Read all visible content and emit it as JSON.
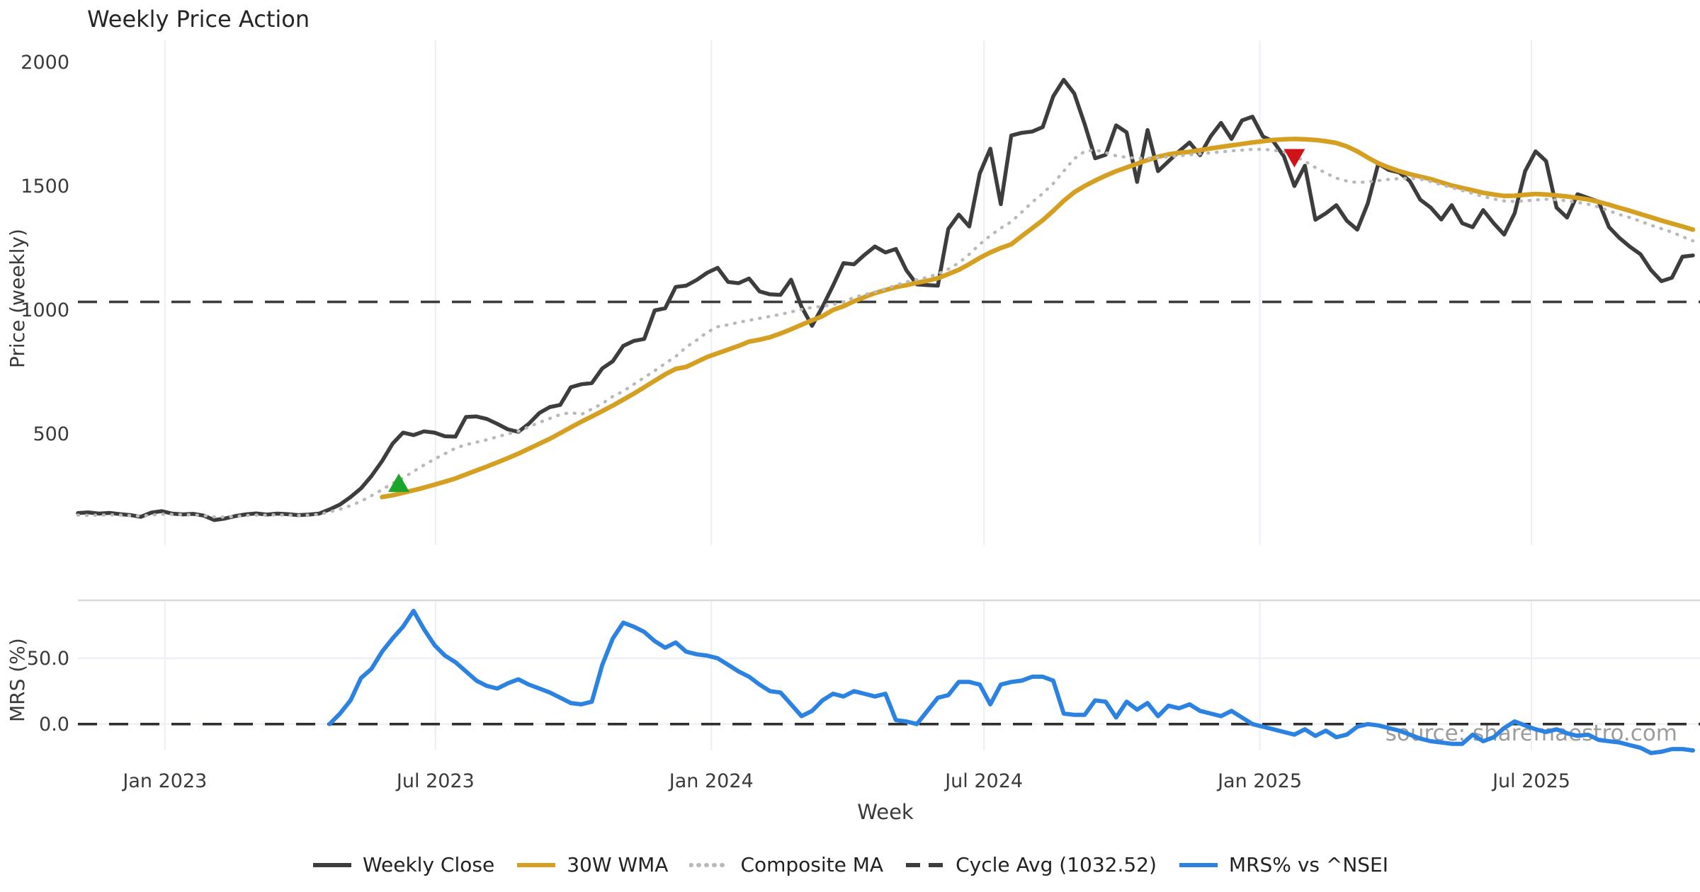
{
  "title": "Weekly Price Action",
  "axes": {
    "price_ylabel": "Price (weekly)",
    "mrs_ylabel": "MRS (%)",
    "xlabel": "Week",
    "price_ticks": [
      {
        "label": "500",
        "value": 500
      },
      {
        "label": "1000",
        "value": 1000
      },
      {
        "label": "1500",
        "value": 1500
      },
      {
        "label": "2000",
        "value": 2000
      }
    ],
    "mrs_ticks": [
      {
        "label": "0.0",
        "value": 0
      },
      {
        "label": "50.0",
        "value": 50
      }
    ],
    "x_ticks": [
      {
        "label": "Jan 2023",
        "week": 8.3
      },
      {
        "label": "Jul 2023",
        "week": 34.1
      },
      {
        "label": "Jan 2024",
        "week": 60.4
      },
      {
        "label": "Jul 2024",
        "week": 86.4
      },
      {
        "label": "Jan 2025",
        "week": 112.7
      },
      {
        "label": "Jul 2025",
        "week": 138.6
      }
    ],
    "price_ylim": [
      51,
      2088
    ],
    "mrs_ylim": [
      -20,
      94
    ]
  },
  "watermark": "source: sharemaestro.com",
  "colors": {
    "weekly_close": "#3d3d3d",
    "wma30": "#d5a021",
    "composite_ma": "#b9b9b9",
    "cycle_avg": "#3d3d3d",
    "mrs": "#2c82e0",
    "buy_marker": "#1aa62c",
    "sell_marker": "#cf1318",
    "grid": "#eceef4",
    "panel_border": "#d9d9d9"
  },
  "legend": {
    "items": [
      {
        "label": "Weekly Close",
        "swatch": "solid",
        "color": "#3d3d3d"
      },
      {
        "label": "30W WMA",
        "swatch": "solid",
        "color": "#d5a021"
      },
      {
        "label": "Composite MA",
        "swatch": "dotted",
        "color": "#b9b9b9"
      },
      {
        "label": "Cycle Avg (1032.52)",
        "swatch": "dashed",
        "color": "#3d3d3d"
      },
      {
        "label": "MRS% vs ^NSEI",
        "swatch": "solid",
        "color": "#2c82e0"
      }
    ]
  },
  "chart_data": {
    "type": "line",
    "title": "Weekly Price Action",
    "xlabel": "Week",
    "x_start": "2022-11-04",
    "x_freq_days": 7,
    "n_weeks": 155,
    "cycle_avg": 1032.52,
    "markers": [
      {
        "type": "buy-signal",
        "shape": "triangle-up",
        "color": "#1aa62c",
        "week": 30.6,
        "price": 300
      },
      {
        "type": "sell-signal",
        "shape": "triangle-down",
        "color": "#cf1318",
        "week": 116,
        "price": 1615
      }
    ],
    "series": [
      {
        "name": "Weekly Close",
        "panel": "price",
        "start_index": 0,
        "values": [
          180,
          183,
          178,
          181,
          176,
          172,
          165,
          182,
          188,
          178,
          175,
          177,
          170,
          152,
          158,
          168,
          175,
          179,
          174,
          178,
          176,
          172,
          174,
          178,
          195,
          215,
          245,
          280,
          330,
          390,
          460,
          505,
          495,
          510,
          505,
          490,
          489,
          568,
          570,
          560,
          540,
          518,
          508,
          541,
          584,
          608,
          617,
          688,
          700,
          705,
          764,
          793,
          855,
          875,
          883,
          998,
          1007,
          1093,
          1098,
          1121,
          1150,
          1170,
          1113,
          1108,
          1127,
          1075,
          1063,
          1061,
          1122,
          1013,
          936,
          1013,
          1098,
          1189,
          1184,
          1222,
          1256,
          1232,
          1246,
          1160,
          1103,
          1100,
          1098,
          1327,
          1385,
          1337,
          1551,
          1651,
          1427,
          1704,
          1715,
          1720,
          1738,
          1862,
          1929,
          1874,
          1750,
          1612,
          1626,
          1745,
          1717,
          1517,
          1726,
          1560,
          1600,
          1640,
          1676,
          1625,
          1700,
          1755,
          1690,
          1765,
          1780,
          1700,
          1680,
          1620,
          1500,
          1582,
          1364,
          1390,
          1423,
          1360,
          1324,
          1430,
          1590,
          1565,
          1555,
          1520,
          1445,
          1413,
          1365,
          1423,
          1350,
          1334,
          1403,
          1350,
          1304,
          1390,
          1560,
          1640,
          1601,
          1413,
          1373,
          1467,
          1452,
          1437,
          1334,
          1290,
          1255,
          1225,
          1161,
          1116,
          1130,
          1215,
          1220
        ]
      },
      {
        "name": "30W WMA",
        "panel": "price",
        "start_index": 29,
        "values": [
          245,
          252,
          262,
          272,
          283,
          295,
          307,
          320,
          336,
          352,
          368,
          385,
          402,
          420,
          440,
          460,
          480,
          503,
          526,
          549,
          570,
          592,
          614,
          638,
          662,
          688,
          714,
          740,
          762,
          770,
          790,
          810,
          825,
          840,
          855,
          872,
          880,
          890,
          905,
          922,
          940,
          958,
          975,
          1000,
          1015,
          1035,
          1052,
          1068,
          1080,
          1092,
          1100,
          1110,
          1118,
          1128,
          1145,
          1162,
          1185,
          1210,
          1232,
          1250,
          1265,
          1298,
          1330,
          1362,
          1400,
          1440,
          1475,
          1500,
          1522,
          1542,
          1560,
          1575,
          1590,
          1605,
          1618,
          1628,
          1634,
          1638,
          1645,
          1652,
          1658,
          1664,
          1670,
          1676,
          1681,
          1686,
          1689,
          1690,
          1689,
          1686,
          1681,
          1674,
          1660,
          1640,
          1615,
          1592,
          1575,
          1560,
          1548,
          1538,
          1528,
          1515,
          1502,
          1492,
          1483,
          1473,
          1466,
          1460,
          1461,
          1465,
          1468,
          1466,
          1462,
          1458,
          1452,
          1446,
          1436,
          1425,
          1412,
          1400,
          1387,
          1374,
          1361,
          1349,
          1337,
          1324
        ]
      },
      {
        "name": "Composite MA",
        "panel": "price",
        "start_index": 0,
        "values": [
          172,
          171,
          172,
          173,
          172,
          170,
          168,
          172,
          176,
          175,
          174,
          173,
          170,
          165,
          164,
          167,
          170,
          172,
          172,
          173,
          172,
          171,
          172,
          175,
          185,
          196,
          210,
          228,
          250,
          275,
          300,
          322,
          348,
          374,
          398,
          420,
          442,
          456,
          466,
          476,
          488,
          500,
          510,
          528,
          546,
          562,
          578,
          586,
          578,
          600,
          622,
          651,
          672,
          700,
          727,
          755,
          784,
          812,
          850,
          878,
          910,
          932,
          940,
          950,
          958,
          966,
          974,
          982,
          992,
          1002,
          1010,
          1015,
          1022,
          1032,
          1051,
          1062,
          1072,
          1085,
          1100,
          1113,
          1122,
          1132,
          1145,
          1165,
          1190,
          1225,
          1265,
          1300,
          1330,
          1356,
          1395,
          1435,
          1470,
          1510,
          1560,
          1610,
          1640,
          1646,
          1635,
          1622,
          1616,
          1612,
          1612,
          1615,
          1618,
          1622,
          1626,
          1630,
          1634,
          1638,
          1642,
          1645,
          1648,
          1648,
          1645,
          1638,
          1621,
          1600,
          1575,
          1552,
          1532,
          1520,
          1514,
          1517,
          1522,
          1527,
          1530,
          1532,
          1528,
          1518,
          1505,
          1494,
          1482,
          1470,
          1458,
          1448,
          1440,
          1438,
          1440,
          1444,
          1447,
          1445,
          1440,
          1434,
          1427,
          1415,
          1400,
          1385,
          1373,
          1358,
          1342,
          1328,
          1314,
          1296,
          1279
        ]
      },
      {
        "name": "MRS% vs ^NSEI",
        "panel": "mrs",
        "start_index": 24,
        "values": [
          0,
          8,
          18,
          35,
          42,
          55,
          65,
          74,
          86,
          72,
          60,
          52,
          47,
          40,
          33,
          29,
          27,
          31,
          34,
          30,
          27,
          24,
          20,
          16,
          15,
          17,
          45,
          65,
          77,
          74,
          70,
          63,
          58,
          62,
          55,
          53,
          52,
          50,
          45,
          40,
          36,
          30,
          25,
          24,
          15,
          6,
          10,
          18,
          23,
          21,
          25,
          23,
          21,
          23,
          3,
          2,
          0,
          10,
          20,
          22,
          32,
          32,
          30,
          15,
          30,
          32,
          33,
          36,
          36,
          33,
          8,
          7,
          7,
          18,
          17,
          5,
          17,
          11,
          16,
          6,
          14,
          12,
          15,
          10,
          8,
          6,
          10,
          5,
          0,
          -2,
          -4,
          -6,
          -8,
          -4,
          -9,
          -5,
          -10,
          -8,
          -2,
          0,
          -1,
          -3,
          -5,
          -8,
          -11,
          -13,
          -14,
          -15,
          -15,
          -8,
          -13,
          -10,
          -3,
          2,
          -1,
          -4,
          -6,
          -4,
          -7,
          -9,
          -8,
          -12,
          -13,
          -14,
          -16,
          -18,
          -22,
          -21,
          -19,
          -19,
          -20
        ]
      }
    ]
  }
}
